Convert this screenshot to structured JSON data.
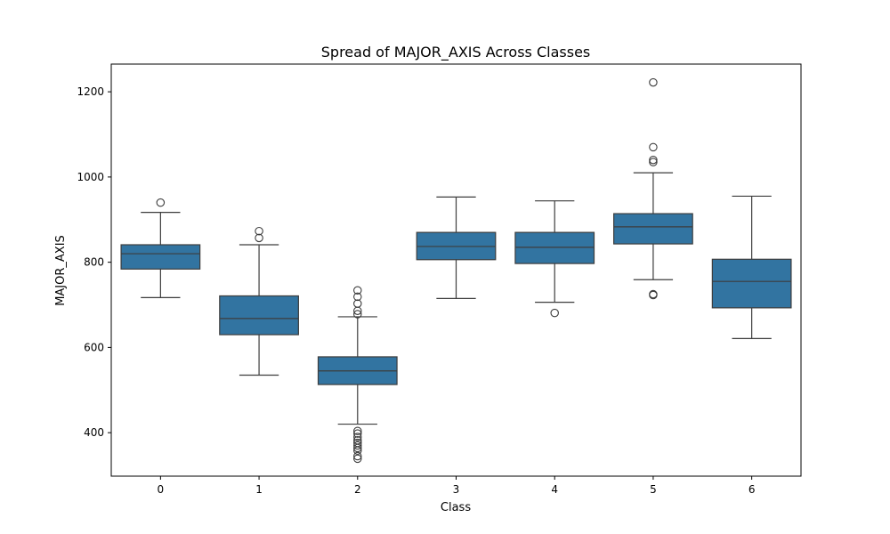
{
  "chart_data": {
    "type": "box",
    "title": "Spread of MAJOR_AXIS Across Classes",
    "xlabel": "Class",
    "ylabel": "MAJOR_AXIS",
    "ylim": [
      298,
      1265
    ],
    "yticks": [
      400,
      600,
      800,
      1000,
      1200
    ],
    "grid": false,
    "box_color": "#3274a1",
    "line_color": "#3d3d3d",
    "categories": [
      "0",
      "1",
      "2",
      "3",
      "4",
      "5",
      "6"
    ],
    "boxes": [
      {
        "category": "0",
        "whisker_low": 717,
        "q1": 784,
        "median": 820,
        "q3": 841,
        "whisker_high": 917,
        "outliers": [
          940
        ]
      },
      {
        "category": "1",
        "whisker_low": 535,
        "q1": 630,
        "median": 668,
        "q3": 721,
        "whisker_high": 841,
        "outliers": [
          857,
          873
        ]
      },
      {
        "category": "2",
        "whisker_low": 420,
        "q1": 513,
        "median": 545,
        "q3": 578,
        "whisker_high": 672,
        "outliers": [
          339,
          345,
          358,
          364,
          370,
          376,
          382,
          390,
          398,
          404,
          678,
          686,
          703,
          719,
          734
        ]
      },
      {
        "category": "3",
        "whisker_low": 715,
        "q1": 806,
        "median": 837,
        "q3": 870,
        "whisker_high": 953,
        "outliers": []
      },
      {
        "category": "4",
        "whisker_low": 706,
        "q1": 797,
        "median": 835,
        "q3": 870,
        "whisker_high": 944,
        "outliers": [
          681
        ]
      },
      {
        "category": "5",
        "whisker_low": 759,
        "q1": 843,
        "median": 883,
        "q3": 914,
        "whisker_high": 1010,
        "outliers": [
          723,
          725,
          1035,
          1040,
          1070,
          1222
        ]
      },
      {
        "category": "6",
        "whisker_low": 621,
        "q1": 693,
        "median": 755,
        "q3": 807,
        "whisker_high": 955,
        "outliers": []
      }
    ]
  }
}
